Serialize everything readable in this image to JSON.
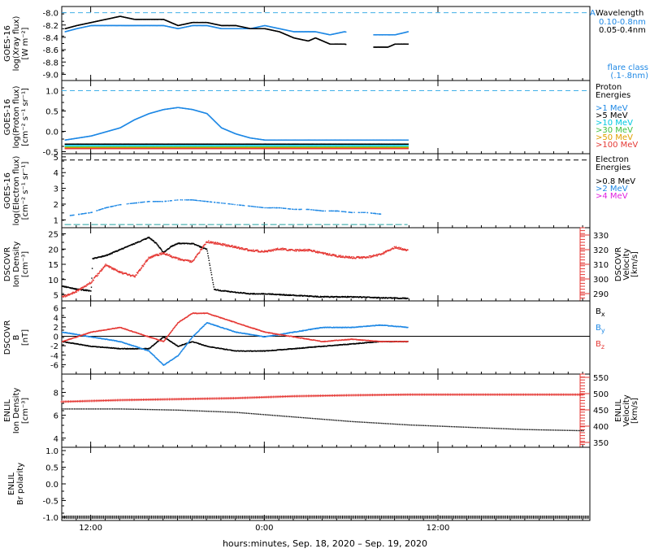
{
  "x_axis": {
    "label": "hours:minutes, Sep. 18, 2020 – Sep. 19, 2020",
    "range_hours": [
      10.0,
      46.5
    ],
    "ticks": [
      {
        "hour": 12,
        "label": "12:00"
      },
      {
        "hour": 24,
        "label": "0:00"
      },
      {
        "hour": 36,
        "label": "12:00"
      }
    ]
  },
  "chart_data": [
    {
      "type": "scatter",
      "id": "xray",
      "ylabel": [
        "GOES-16",
        "log(Xray flux)",
        "[W m⁻²]"
      ],
      "ylim": [
        -9.1,
        -7.9
      ],
      "yticks": [
        "-8.0",
        "-8.2",
        "-8.4",
        "-8.6",
        "-8.8",
        "-9.0"
      ],
      "ytick_values": [
        -8.0,
        -8.2,
        -8.4,
        -8.6,
        -8.8,
        -9.0
      ],
      "legend_title": "Wavelength",
      "legend_marker": "A",
      "reference_lines": [
        {
          "y": -8.0,
          "color": "#40b0e8",
          "style": "dashed"
        }
      ],
      "bottom_note": [
        "flare class",
        "(.1-.8nm)"
      ],
      "series": [
        {
          "name": "0.10-0.8nm",
          "color": "#1e88e5",
          "x": [
            10.2,
            11.0,
            12.0,
            13.0,
            14.0,
            15.0,
            16.0,
            17.0,
            18.0,
            19.0,
            20.0,
            21.0,
            22.0,
            23.0,
            24.0,
            25.0,
            26.0,
            27.0,
            27.5,
            28.5,
            29.5,
            30.5,
            31.5,
            32.5,
            33.0,
            33.9
          ],
          "values": [
            -8.3,
            -8.25,
            -8.2,
            -8.2,
            -8.2,
            -8.2,
            -8.2,
            -8.2,
            -8.25,
            -8.2,
            -8.2,
            -8.25,
            -8.25,
            -8.25,
            -8.2,
            -8.25,
            -8.3,
            -8.3,
            -8.3,
            -8.35,
            -8.3,
            -8.35,
            -8.35,
            -8.35,
            -8.35,
            -8.3
          ]
        },
        {
          "name": "0.05-0.4nm",
          "color": "#000000",
          "x": [
            10.2,
            11.0,
            12.0,
            13.0,
            14.0,
            15.0,
            16.0,
            17.0,
            18.0,
            19.0,
            20.0,
            21.0,
            22.0,
            23.0,
            24.0,
            25.0,
            26.0,
            27.0,
            27.5,
            28.5,
            29.5,
            30.5,
            31.5,
            32.5,
            33.0,
            33.9
          ],
          "values": [
            -8.25,
            -8.2,
            -8.15,
            -8.1,
            -8.05,
            -8.1,
            -8.1,
            -8.1,
            -8.2,
            -8.15,
            -8.15,
            -8.2,
            -8.2,
            -8.25,
            -8.25,
            -8.3,
            -8.4,
            -8.45,
            -8.4,
            -8.5,
            -8.5,
            -8.55,
            -8.55,
            -8.55,
            -8.5,
            -8.5
          ]
        }
      ]
    },
    {
      "type": "scatter",
      "id": "proton",
      "ylabel": [
        "GOES-16",
        "log(Proton flux)",
        "[cm⁻² s⁻¹ sr⁻¹]"
      ],
      "ylim": [
        -0.55,
        1.25
      ],
      "yticks": [
        "1.0",
        "0.5",
        "0.0",
        "-0.5"
      ],
      "ytick_values": [
        1.0,
        0.5,
        0.0,
        -0.5
      ],
      "legend_title": "Proton Energies",
      "reference_lines": [
        {
          "y": 1.0,
          "color": "#40b0e8",
          "style": "dashed"
        }
      ],
      "series": [
        {
          "name": ">1 MeV",
          "color": "#1e88e5",
          "x": [
            10.2,
            12.0,
            14.0,
            15.0,
            16.0,
            17.0,
            18.0,
            19.0,
            20.0,
            21.0,
            22.0,
            23.0,
            24.0,
            26.0,
            28.0,
            30.0,
            32.0,
            33.9
          ],
          "values": [
            -0.2,
            -0.1,
            0.1,
            0.3,
            0.45,
            0.55,
            0.6,
            0.55,
            0.45,
            0.1,
            -0.05,
            -0.15,
            -0.2,
            -0.2,
            -0.2,
            -0.2,
            -0.2,
            -0.2
          ]
        },
        {
          "name": ">5 MeV",
          "color": "#000000",
          "x": [
            10.2,
            33.9
          ],
          "values": [
            -0.3,
            -0.3
          ]
        },
        {
          "name": ">10 MeV",
          "color": "#00c8e0",
          "x": [
            10.2,
            33.9
          ],
          "values": [
            -0.33,
            -0.33
          ]
        },
        {
          "name": ">30 MeV",
          "color": "#40c040",
          "x": [
            10.2,
            33.9
          ],
          "values": [
            -0.37,
            -0.37
          ]
        },
        {
          "name": ">50 MeV",
          "color": "#e0a000",
          "x": [
            10.2,
            33.9
          ],
          "values": [
            -0.39,
            -0.39
          ]
        },
        {
          "name": ">100 MeV",
          "color": "#e53935",
          "x": [
            10.2,
            33.9
          ],
          "values": [
            -0.41,
            -0.41
          ]
        }
      ]
    },
    {
      "type": "scatter",
      "id": "electron",
      "ylabel": [
        "GOES-16",
        "log(Electron flux)",
        "[cm⁻² s⁻¹ sr⁻¹]"
      ],
      "ylim": [
        0.5,
        5.2
      ],
      "yticks": [
        "5",
        "4",
        "3",
        "2",
        "1"
      ],
      "ytick_values": [
        5,
        4,
        3,
        2,
        1
      ],
      "legend_title": "Electron Energies",
      "reference_lines": [
        {
          "y": 4.8,
          "color": "#000000",
          "style": "dashed"
        }
      ],
      "series": [
        {
          "name": ">0.8 MeV",
          "color": "#000000",
          "x": [],
          "values": []
        },
        {
          "name": ">2 MeV",
          "color": "#1e88e5",
          "x": [
            10.5,
            12.0,
            13.0,
            14.0,
            15.0,
            16.0,
            17.0,
            18.0,
            19.0,
            20.0,
            21.0,
            22.0,
            23.0,
            24.0,
            25.0,
            26.0,
            27.0,
            28.0,
            29.0,
            30.0,
            31.0,
            32.0
          ],
          "values": [
            1.3,
            1.5,
            1.8,
            2.0,
            2.1,
            2.2,
            2.2,
            2.3,
            2.3,
            2.2,
            2.1,
            2.0,
            1.9,
            1.8,
            1.8,
            1.7,
            1.7,
            1.6,
            1.6,
            1.5,
            1.5,
            1.4
          ]
        },
        {
          "name": ">4 MeV",
          "color": "#e020e0",
          "x": [],
          "values": []
        }
      ],
      "baseline": {
        "y": 0.7,
        "x": [
          10.2,
          33.9
        ],
        "color": "#20a0a0"
      }
    },
    {
      "type": "line",
      "id": "dscovr_density",
      "ylabel": [
        "DSCOVR",
        "Ion Density",
        "[cm⁻³]"
      ],
      "ylim": [
        3,
        27
      ],
      "yticks": [
        "25",
        "20",
        "15",
        "10",
        "5"
      ],
      "ytick_values": [
        25,
        20,
        15,
        10,
        5
      ],
      "y2label": [
        "DSCOVR",
        "Velocity",
        "[km/s]"
      ],
      "y2lim": [
        285,
        335
      ],
      "y2ticks": [
        "330",
        "320",
        "310",
        "300",
        "290"
      ],
      "y2tick_values": [
        330,
        320,
        310,
        300,
        290
      ],
      "series": [
        {
          "name": "density",
          "color": "#000000",
          "axis": "left",
          "x": [
            10.0,
            11.0,
            12.0,
            12.1,
            13.0,
            14.0,
            15.0,
            16.0,
            16.5,
            17.0,
            17.5,
            18.0,
            19.0,
            20.0,
            20.5,
            21.0,
            22.0,
            23.0,
            24.0,
            26.0,
            28.0,
            30.0,
            32.0,
            33.9
          ],
          "values": [
            8,
            7,
            6.5,
            17,
            18,
            20,
            22,
            24,
            22,
            19,
            21,
            22,
            22,
            20,
            7,
            6.5,
            6,
            5.5,
            5.5,
            5,
            4.5,
            4.5,
            4.2,
            4
          ]
        },
        {
          "name": "velocity",
          "color": "#e53935",
          "axis": "right",
          "x": [
            10.0,
            11.0,
            12.0,
            13.0,
            14.0,
            15.0,
            16.0,
            17.0,
            18.0,
            19.0,
            20.0,
            21.0,
            22.0,
            23.0,
            24.0,
            25.0,
            26.0,
            27.0,
            28.0,
            29.0,
            30.0,
            31.0,
            32.0,
            33.0,
            33.9
          ],
          "values": [
            288,
            292,
            298,
            310,
            305,
            302,
            315,
            318,
            314,
            312,
            326,
            324,
            322,
            320,
            319,
            321,
            320,
            320,
            318,
            316,
            315,
            315,
            317,
            322,
            320
          ]
        }
      ]
    },
    {
      "type": "line",
      "id": "dscovr_b",
      "ylabel": [
        "DSCOVR",
        "B",
        "[nT]"
      ],
      "ylim": [
        -8,
        7.5
      ],
      "yticks": [
        "6",
        "4",
        "2",
        "0",
        "-2",
        "-4",
        "-6"
      ],
      "ytick_values": [
        6,
        4,
        2,
        0,
        -2,
        -4,
        -6
      ],
      "zero_line": true,
      "series": [
        {
          "name": "Bx",
          "color": "#000000",
          "x": [
            10.0,
            12.0,
            14.0,
            16.0,
            17.0,
            18.0,
            19.0,
            20.0,
            22.0,
            24.0,
            26.0,
            28.0,
            30.0,
            32.0,
            33.9
          ],
          "values": [
            -1,
            -2,
            -2.5,
            -2.5,
            0,
            -2,
            -1,
            -2,
            -3,
            -3,
            -2.5,
            -2,
            -1.5,
            -1,
            -1
          ]
        },
        {
          "name": "By",
          "color": "#1e88e5",
          "x": [
            10.0,
            12.0,
            14.0,
            16.0,
            17.0,
            18.0,
            19.0,
            20.0,
            22.0,
            24.0,
            26.0,
            28.0,
            30.0,
            32.0,
            33.9
          ],
          "values": [
            1,
            0,
            -1,
            -3,
            -6,
            -4,
            0,
            3,
            1,
            0,
            1,
            2,
            2,
            2.5,
            2
          ]
        },
        {
          "name": "Bz",
          "color": "#e53935",
          "x": [
            10.0,
            12.0,
            14.0,
            15.0,
            16.0,
            17.0,
            18.0,
            19.0,
            20.0,
            22.0,
            24.0,
            26.0,
            28.0,
            30.0,
            32.0,
            33.9
          ],
          "values": [
            -1,
            1,
            2,
            1,
            0,
            -1,
            3,
            5,
            5,
            3,
            1,
            0,
            -1,
            -0.5,
            -1,
            -1
          ]
        }
      ]
    },
    {
      "type": "line",
      "id": "enlil_density",
      "ylabel": [
        "ENLIL",
        "Ion Density",
        "[cm⁻³]"
      ],
      "ylim": [
        3.2,
        9.6
      ],
      "yticks": [
        "8",
        "6",
        "4"
      ],
      "ytick_values": [
        8,
        6,
        4
      ],
      "y2label": [
        "ENLIL",
        "Velocity",
        "[km/s]"
      ],
      "y2lim": [
        335,
        560
      ],
      "y2ticks": [
        "550",
        "500",
        "450",
        "400",
        "350"
      ],
      "y2tick_values": [
        550,
        500,
        450,
        400,
        350
      ],
      "series": [
        {
          "name": "density",
          "color": "#000000",
          "axis": "left",
          "x": [
            10.0,
            14.0,
            18.0,
            22.0,
            26.0,
            30.0,
            34.0,
            38.0,
            42.0,
            46.0
          ],
          "values": [
            6.6,
            6.6,
            6.5,
            6.3,
            5.9,
            5.5,
            5.2,
            5.0,
            4.8,
            4.7
          ]
        },
        {
          "name": "velocity",
          "color": "#e53935",
          "axis": "right",
          "x": [
            10.0,
            14.0,
            18.0,
            22.0,
            26.0,
            30.0,
            34.0,
            38.0,
            42.0,
            46.0
          ],
          "values": [
            475,
            480,
            483,
            486,
            492,
            495,
            497,
            497,
            497,
            497
          ]
        }
      ]
    },
    {
      "type": "line",
      "id": "enlil_polarity",
      "ylabel": [
        "ENLIL",
        "Br polarity"
      ],
      "ylim": [
        -1.1,
        1.1
      ],
      "yticks": [
        "1.0",
        "0.5",
        "0.0",
        "-0.5",
        "-1.0"
      ],
      "ytick_values": [
        1.0,
        0.5,
        0.0,
        -0.5,
        -1.0
      ],
      "series": [
        {
          "name": "polarity",
          "color": "#000000",
          "x": [
            10.0,
            46.5
          ],
          "values": [
            -1.0,
            -1.0
          ]
        }
      ]
    }
  ],
  "legends": {
    "xray": [
      "Wavelength",
      "0.10-0.8nm",
      "0.05-0.4nm"
    ],
    "proton": [
      ">1 MeV",
      ">5 MeV",
      ">10 MeV",
      ">30 MeV",
      ">50 MeV",
      ">100 MeV"
    ],
    "electron": [
      ">0.8 MeV",
      ">2 MeV",
      ">4 MeV"
    ],
    "dscovr_b": [
      "Bx",
      "By",
      "Bz"
    ]
  }
}
